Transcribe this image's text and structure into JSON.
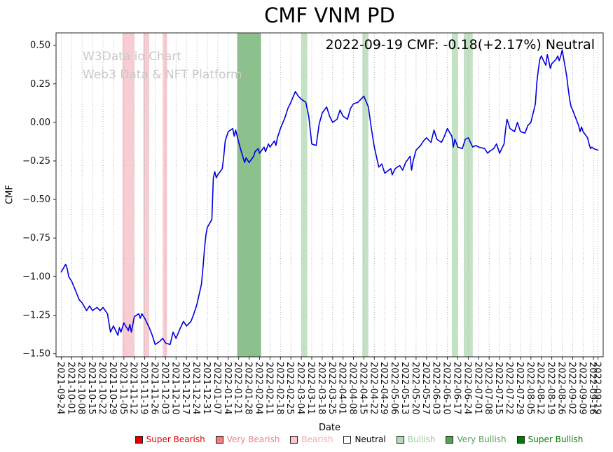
{
  "chart_data": {
    "type": "line",
    "title": "CMF VNM PD",
    "annotation": "2022-09-19 CMF: -0.18(+2.17%) Neutral",
    "watermark": {
      "line1": "W3Data.io Chart",
      "line2": "Web3 Data & NFT Platform"
    },
    "xlabel": "Date",
    "ylabel": "CMF",
    "line_color": "#0000e0",
    "grid_color": "#a6a6a6",
    "spine_color": "#262626",
    "ylim": [
      -1.52,
      0.58
    ],
    "yticks": [
      0.5,
      0.25,
      0.0,
      -0.25,
      -0.5,
      -0.75,
      -1.0,
      -1.25,
      -1.5
    ],
    "xticks": [
      "2021-09-24",
      "2021-10-01",
      "2021-10-08",
      "2021-10-15",
      "2021-10-22",
      "2021-10-29",
      "2021-11-05",
      "2021-11-12",
      "2021-11-19",
      "2021-11-26",
      "2021-12-03",
      "2021-12-10",
      "2021-12-17",
      "2021-12-24",
      "2021-12-31",
      "2022-01-07",
      "2022-01-14",
      "2022-01-21",
      "2022-01-28",
      "2022-02-04",
      "2022-02-11",
      "2022-02-18",
      "2022-02-25",
      "2022-03-04",
      "2022-03-11",
      "2022-03-18",
      "2022-03-25",
      "2022-04-01",
      "2022-04-08",
      "2022-04-15",
      "2022-04-22",
      "2022-04-29",
      "2022-05-06",
      "2022-05-13",
      "2022-05-20",
      "2022-05-27",
      "2022-06-03",
      "2022-06-10",
      "2022-06-17",
      "2022-06-24",
      "2022-07-01",
      "2022-07-08",
      "2022-07-15",
      "2022-07-22",
      "2022-07-29",
      "2022-08-05",
      "2022-08-12",
      "2022-08-19",
      "2022-08-26",
      "2022-09-02",
      "2022-09-09",
      "2022-09-16",
      "2022-09-19"
    ],
    "bands": [
      {
        "label": "Bearish",
        "start": "2021-11-04",
        "end": "2021-11-12",
        "color": "#f8cdd2"
      },
      {
        "label": "Bearish",
        "start": "2021-11-18",
        "end": "2021-11-22",
        "color": "#f8cdd2"
      },
      {
        "label": "Bearish",
        "start": "2021-12-01",
        "end": "2021-12-04",
        "color": "#f8cdd2"
      },
      {
        "label": "Very Bullish",
        "start": "2022-01-20",
        "end": "2022-02-05",
        "color": "#8cc08c"
      },
      {
        "label": "Bullish",
        "start": "2022-03-04",
        "end": "2022-03-08",
        "color": "#c3e1c3"
      },
      {
        "label": "Bullish",
        "start": "2022-04-14",
        "end": "2022-04-18",
        "color": "#c3e1c3"
      },
      {
        "label": "Bullish",
        "start": "2022-06-13",
        "end": "2022-06-17",
        "color": "#c3e1c3"
      },
      {
        "label": "Bullish",
        "start": "2022-06-21",
        "end": "2022-06-27",
        "color": "#c3e1c3"
      }
    ],
    "series": [
      {
        "name": "CMF",
        "points": [
          [
            "2021-09-24",
            -0.97
          ],
          [
            "2021-09-27",
            -0.92
          ],
          [
            "2021-09-28",
            -0.95
          ],
          [
            "2021-09-29",
            -1.0
          ],
          [
            "2021-10-01",
            -1.03
          ],
          [
            "2021-10-04",
            -1.1
          ],
          [
            "2021-10-06",
            -1.15
          ],
          [
            "2021-10-08",
            -1.17
          ],
          [
            "2021-10-11",
            -1.22
          ],
          [
            "2021-10-13",
            -1.19
          ],
          [
            "2021-10-15",
            -1.22
          ],
          [
            "2021-10-18",
            -1.2
          ],
          [
            "2021-10-20",
            -1.22
          ],
          [
            "2021-10-22",
            -1.2
          ],
          [
            "2021-10-25",
            -1.24
          ],
          [
            "2021-10-26",
            -1.3
          ],
          [
            "2021-10-27",
            -1.36
          ],
          [
            "2021-10-29",
            -1.32
          ],
          [
            "2021-11-01",
            -1.38
          ],
          [
            "2021-11-02",
            -1.33
          ],
          [
            "2021-11-03",
            -1.36
          ],
          [
            "2021-11-05",
            -1.3
          ],
          [
            "2021-11-08",
            -1.35
          ],
          [
            "2021-11-09",
            -1.31
          ],
          [
            "2021-11-10",
            -1.36
          ],
          [
            "2021-11-12",
            -1.26
          ],
          [
            "2021-11-15",
            -1.24
          ],
          [
            "2021-11-16",
            -1.27
          ],
          [
            "2021-11-17",
            -1.24
          ],
          [
            "2021-11-19",
            -1.27
          ],
          [
            "2021-11-22",
            -1.33
          ],
          [
            "2021-11-24",
            -1.38
          ],
          [
            "2021-11-26",
            -1.44
          ],
          [
            "2021-11-29",
            -1.42
          ],
          [
            "2021-12-01",
            -1.4
          ],
          [
            "2021-12-03",
            -1.43
          ],
          [
            "2021-12-06",
            -1.44
          ],
          [
            "2021-12-08",
            -1.36
          ],
          [
            "2021-12-10",
            -1.4
          ],
          [
            "2021-12-13",
            -1.33
          ],
          [
            "2021-12-15",
            -1.29
          ],
          [
            "2021-12-17",
            -1.32
          ],
          [
            "2021-12-20",
            -1.29
          ],
          [
            "2021-12-22",
            -1.24
          ],
          [
            "2021-12-24",
            -1.18
          ],
          [
            "2021-12-27",
            -1.05
          ],
          [
            "2021-12-28",
            -0.95
          ],
          [
            "2021-12-29",
            -0.83
          ],
          [
            "2021-12-30",
            -0.73
          ],
          [
            "2021-12-31",
            -0.68
          ],
          [
            "2022-01-03",
            -0.63
          ],
          [
            "2022-01-04",
            -0.36
          ],
          [
            "2022-01-05",
            -0.32
          ],
          [
            "2022-01-06",
            -0.36
          ],
          [
            "2022-01-07",
            -0.34
          ],
          [
            "2022-01-10",
            -0.3
          ],
          [
            "2022-01-11",
            -0.22
          ],
          [
            "2022-01-12",
            -0.12
          ],
          [
            "2022-01-14",
            -0.06
          ],
          [
            "2022-01-17",
            -0.04
          ],
          [
            "2022-01-18",
            -0.09
          ],
          [
            "2022-01-19",
            -0.05
          ],
          [
            "2022-01-21",
            -0.13
          ],
          [
            "2022-01-24",
            -0.23
          ],
          [
            "2022-01-25",
            -0.26
          ],
          [
            "2022-01-26",
            -0.23
          ],
          [
            "2022-01-28",
            -0.26
          ],
          [
            "2022-01-31",
            -0.22
          ],
          [
            "2022-02-01",
            -0.19
          ],
          [
            "2022-02-03",
            -0.17
          ],
          [
            "2022-02-04",
            -0.2
          ],
          [
            "2022-02-07",
            -0.16
          ],
          [
            "2022-02-08",
            -0.19
          ],
          [
            "2022-02-10",
            -0.14
          ],
          [
            "2022-02-11",
            -0.16
          ],
          [
            "2022-02-14",
            -0.12
          ],
          [
            "2022-02-15",
            -0.15
          ],
          [
            "2022-02-16",
            -0.1
          ],
          [
            "2022-02-18",
            -0.04
          ],
          [
            "2022-02-21",
            0.03
          ],
          [
            "2022-02-23",
            0.09
          ],
          [
            "2022-02-25",
            0.13
          ],
          [
            "2022-02-28",
            0.2
          ],
          [
            "2022-03-02",
            0.17
          ],
          [
            "2022-03-04",
            0.15
          ],
          [
            "2022-03-07",
            0.13
          ],
          [
            "2022-03-09",
            0.04
          ],
          [
            "2022-03-11",
            -0.14
          ],
          [
            "2022-03-14",
            -0.15
          ],
          [
            "2022-03-16",
            -0.01
          ],
          [
            "2022-03-18",
            0.06
          ],
          [
            "2022-03-21",
            0.1
          ],
          [
            "2022-03-23",
            0.04
          ],
          [
            "2022-03-25",
            0.0
          ],
          [
            "2022-03-28",
            0.02
          ],
          [
            "2022-03-30",
            0.08
          ],
          [
            "2022-04-01",
            0.04
          ],
          [
            "2022-04-04",
            0.02
          ],
          [
            "2022-04-06",
            0.09
          ],
          [
            "2022-04-08",
            0.12
          ],
          [
            "2022-04-11",
            0.13
          ],
          [
            "2022-04-13",
            0.15
          ],
          [
            "2022-04-15",
            0.17
          ],
          [
            "2022-04-18",
            0.1
          ],
          [
            "2022-04-20",
            -0.04
          ],
          [
            "2022-04-22",
            -0.16
          ],
          [
            "2022-04-25",
            -0.29
          ],
          [
            "2022-04-27",
            -0.27
          ],
          [
            "2022-04-29",
            -0.33
          ],
          [
            "2022-05-03",
            -0.3
          ],
          [
            "2022-05-04",
            -0.34
          ],
          [
            "2022-05-06",
            -0.3
          ],
          [
            "2022-05-09",
            -0.28
          ],
          [
            "2022-05-11",
            -0.31
          ],
          [
            "2022-05-13",
            -0.26
          ],
          [
            "2022-05-16",
            -0.22
          ],
          [
            "2022-05-17",
            -0.31
          ],
          [
            "2022-05-18",
            -0.25
          ],
          [
            "2022-05-20",
            -0.18
          ],
          [
            "2022-05-23",
            -0.15
          ],
          [
            "2022-05-25",
            -0.12
          ],
          [
            "2022-05-27",
            -0.1
          ],
          [
            "2022-05-30",
            -0.13
          ],
          [
            "2022-06-01",
            -0.05
          ],
          [
            "2022-06-03",
            -0.11
          ],
          [
            "2022-06-06",
            -0.13
          ],
          [
            "2022-06-08",
            -0.09
          ],
          [
            "2022-06-10",
            -0.04
          ],
          [
            "2022-06-13",
            -0.09
          ],
          [
            "2022-06-14",
            -0.16
          ],
          [
            "2022-06-15",
            -0.11
          ],
          [
            "2022-06-17",
            -0.16
          ],
          [
            "2022-06-20",
            -0.17
          ],
          [
            "2022-06-22",
            -0.11
          ],
          [
            "2022-06-24",
            -0.1
          ],
          [
            "2022-06-27",
            -0.16
          ],
          [
            "2022-06-29",
            -0.15
          ],
          [
            "2022-07-01",
            -0.16
          ],
          [
            "2022-07-05",
            -0.17
          ],
          [
            "2022-07-07",
            -0.2
          ],
          [
            "2022-07-08",
            -0.19
          ],
          [
            "2022-07-11",
            -0.17
          ],
          [
            "2022-07-13",
            -0.14
          ],
          [
            "2022-07-15",
            -0.2
          ],
          [
            "2022-07-18",
            -0.14
          ],
          [
            "2022-07-19",
            -0.05
          ],
          [
            "2022-07-20",
            0.02
          ],
          [
            "2022-07-22",
            -0.04
          ],
          [
            "2022-07-25",
            -0.06
          ],
          [
            "2022-07-27",
            0.0
          ],
          [
            "2022-07-29",
            -0.06
          ],
          [
            "2022-08-01",
            -0.07
          ],
          [
            "2022-08-03",
            -0.02
          ],
          [
            "2022-08-05",
            0.0
          ],
          [
            "2022-08-08",
            0.12
          ],
          [
            "2022-08-09",
            0.26
          ],
          [
            "2022-08-10",
            0.34
          ],
          [
            "2022-08-11",
            0.41
          ],
          [
            "2022-08-12",
            0.43
          ],
          [
            "2022-08-15",
            0.37
          ],
          [
            "2022-08-16",
            0.44
          ],
          [
            "2022-08-17",
            0.4
          ],
          [
            "2022-08-18",
            0.35
          ],
          [
            "2022-08-19",
            0.38
          ],
          [
            "2022-08-22",
            0.41
          ],
          [
            "2022-08-23",
            0.43
          ],
          [
            "2022-08-24",
            0.4
          ],
          [
            "2022-08-25",
            0.43
          ],
          [
            "2022-08-26",
            0.47
          ],
          [
            "2022-08-29",
            0.3
          ],
          [
            "2022-08-30",
            0.22
          ],
          [
            "2022-08-31",
            0.15
          ],
          [
            "2022-09-01",
            0.1
          ],
          [
            "2022-09-02",
            0.08
          ],
          [
            "2022-09-06",
            -0.02
          ],
          [
            "2022-09-07",
            -0.06
          ],
          [
            "2022-09-08",
            -0.03
          ],
          [
            "2022-09-09",
            -0.06
          ],
          [
            "2022-09-12",
            -0.1
          ],
          [
            "2022-09-13",
            -0.14
          ],
          [
            "2022-09-14",
            -0.17
          ],
          [
            "2022-09-15",
            -0.16
          ],
          [
            "2022-09-16",
            -0.17
          ],
          [
            "2022-09-19",
            -0.18
          ]
        ]
      }
    ],
    "legend": [
      {
        "label": "Super Bearish",
        "color": "#e00000",
        "text_color": "#e00000"
      },
      {
        "label": "Very Bearish",
        "color": "#f08080",
        "text_color": "#f08080"
      },
      {
        "label": "Bearish",
        "color": "#f8c8cc",
        "text_color": "#f4a9b0"
      },
      {
        "label": "Neutral",
        "color": "#ffffff",
        "text_color": "#000000"
      },
      {
        "label": "Bullish",
        "color": "#b5dcb5",
        "text_color": "#9ccc9c"
      },
      {
        "label": "Very Bullish",
        "color": "#55a055",
        "text_color": "#55a055"
      },
      {
        "label": "Super Bullish",
        "color": "#007a00",
        "text_color": "#007a00"
      }
    ]
  }
}
